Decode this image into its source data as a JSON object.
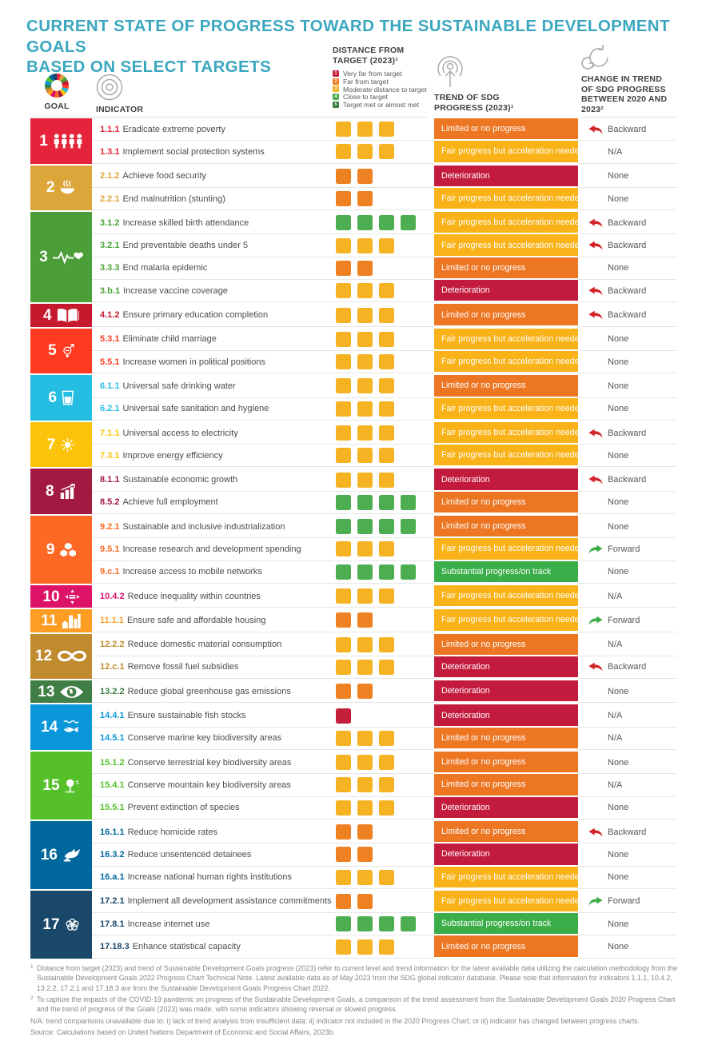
{
  "title": {
    "line1": "CURRENT STATE OF PROGRESS TOWARD THE SUSTAINABLE DEVELOPMENT GOALS",
    "line2": "BASED ON SELECT TARGETS"
  },
  "columns": {
    "goal": "GOAL",
    "indicator": "INDICATOR",
    "distance": "DISTANCE FROM TARGET (2023)¹",
    "trend": "TREND OF SDG PROGRESS (2023)¹",
    "change": "CHANGE IN TREND OF SDG PROGRESS BETWEEN 2020 AND 2023²"
  },
  "chart_data": {
    "type": "table",
    "distance_legend": [
      {
        "level": "1",
        "label": "Very far from target",
        "color": "#C5203B"
      },
      {
        "level": "2",
        "label": "Far from target",
        "color": "#EE7B23"
      },
      {
        "level": "3",
        "label": "Moderate distance to target",
        "color": "#F5B324"
      },
      {
        "level": "4",
        "label": "Close to target",
        "color": "#4CAE50"
      },
      {
        "level": "5",
        "label": "Target met or almost met",
        "color": "#367C38"
      }
    ],
    "square_colors": {
      "red": "#C5203B",
      "orange": "#EE8223",
      "yellow": "#F5B324",
      "green": "#4CAE50"
    },
    "trend_colors": {
      "limited": "#ED7623",
      "fair": "#F9B217",
      "deterioration": "#C31B3D",
      "substantial": "#3BAE49"
    },
    "trend_labels": {
      "limited": "Limited or no progress",
      "fair": "Fair progress but acceleration needed",
      "deterioration": "Deterioration",
      "substantial": "Substantial progress/on track"
    },
    "change_arrow_colors": {
      "Backward": "#D2232A",
      "Forward": "#3DAE49"
    },
    "goals": [
      {
        "number": "1",
        "color": "#E5243B",
        "icon": "people-icon",
        "indicators": [
          {
            "code": "1.1.1",
            "name": "Eradicate extreme poverty",
            "distance": {
              "level": "yellow",
              "count": 3
            },
            "trend": "limited",
            "change": "Backward"
          },
          {
            "code": "1.3.1",
            "name": "Implement social protection systems",
            "distance": {
              "level": "yellow",
              "count": 3
            },
            "trend": "fair",
            "change": "N/A"
          }
        ]
      },
      {
        "number": "2",
        "color": "#DDA63A",
        "icon": "food-icon",
        "indicators": [
          {
            "code": "2.1.2",
            "name": "Achieve food security",
            "distance": {
              "level": "orange",
              "count": 2
            },
            "trend": "deterioration",
            "change": "None"
          },
          {
            "code": "2.2.1",
            "name": "End malnutrition (stunting)",
            "distance": {
              "level": "orange",
              "count": 2
            },
            "trend": "fair",
            "change": "None"
          }
        ]
      },
      {
        "number": "3",
        "color": "#4C9F38",
        "icon": "health-icon",
        "indicators": [
          {
            "code": "3.1.2",
            "name": "Increase skilled birth attendance",
            "distance": {
              "level": "green",
              "count": 4
            },
            "trend": "fair",
            "change": "Backward"
          },
          {
            "code": "3.2.1",
            "name": "End preventable deaths under 5",
            "distance": {
              "level": "yellow",
              "count": 3
            },
            "trend": "fair",
            "change": "Backward"
          },
          {
            "code": "3.3.3",
            "name": "End malaria epidemic",
            "distance": {
              "level": "orange",
              "count": 2
            },
            "trend": "limited",
            "change": "None"
          },
          {
            "code": "3.b.1",
            "name": "Increase vaccine coverage",
            "distance": {
              "level": "yellow",
              "count": 3
            },
            "trend": "deterioration",
            "change": "Backward"
          }
        ]
      },
      {
        "number": "4",
        "color": "#C5192D",
        "icon": "education-icon",
        "indicators": [
          {
            "code": "4.1.2",
            "name": "Ensure primary education completion",
            "distance": {
              "level": "yellow",
              "count": 3
            },
            "trend": "limited",
            "change": "Backward"
          }
        ]
      },
      {
        "number": "5",
        "color": "#FF3A21",
        "icon": "gender-icon",
        "indicators": [
          {
            "code": "5.3.1",
            "name": "Eliminate child marriage",
            "distance": {
              "level": "yellow",
              "count": 3
            },
            "trend": "fair",
            "change": "None"
          },
          {
            "code": "5.5.1",
            "name": "Increase women in political positions",
            "distance": {
              "level": "yellow",
              "count": 3
            },
            "trend": "fair",
            "change": "None"
          }
        ]
      },
      {
        "number": "6",
        "color": "#26BDE2",
        "icon": "water-icon",
        "indicators": [
          {
            "code": "6.1.1",
            "name": "Universal safe drinking water",
            "distance": {
              "level": "yellow",
              "count": 3
            },
            "trend": "limited",
            "change": "None"
          },
          {
            "code": "6.2.1",
            "name": "Universal safe sanitation and hygiene",
            "distance": {
              "level": "yellow",
              "count": 3
            },
            "trend": "fair",
            "change": "None"
          }
        ]
      },
      {
        "number": "7",
        "color": "#FCC30B",
        "icon": "energy-icon",
        "indicators": [
          {
            "code": "7.1.1",
            "name": "Universal access to electricity",
            "distance": {
              "level": "yellow",
              "count": 3
            },
            "trend": "fair",
            "change": "Backward"
          },
          {
            "code": "7.3.1",
            "name": "Improve energy efficiency",
            "distance": {
              "level": "yellow",
              "count": 3
            },
            "trend": "fair",
            "change": "None"
          }
        ]
      },
      {
        "number": "8",
        "color": "#A21942",
        "icon": "economy-icon",
        "indicators": [
          {
            "code": "8.1.1",
            "name": "Sustainable economic growth",
            "distance": {
              "level": "yellow",
              "count": 3
            },
            "trend": "deterioration",
            "change": "Backward"
          },
          {
            "code": "8.5.2",
            "name": "Achieve full employment",
            "distance": {
              "level": "green",
              "count": 4
            },
            "trend": "limited",
            "change": "None"
          }
        ]
      },
      {
        "number": "9",
        "color": "#FD6925",
        "icon": "industry-icon",
        "indicators": [
          {
            "code": "9.2.1",
            "name": "Sustainable and inclusive industrialization",
            "distance": {
              "level": "green",
              "count": 4
            },
            "trend": "limited",
            "change": "None"
          },
          {
            "code": "9.5.1",
            "name": "Increase research and development spending",
            "distance": {
              "level": "yellow",
              "count": 3
            },
            "trend": "fair",
            "change": "Forward"
          },
          {
            "code": "9.c.1",
            "name": "Increase access to mobile networks",
            "distance": {
              "level": "green",
              "count": 4
            },
            "trend": "substantial",
            "change": "None"
          }
        ]
      },
      {
        "number": "10",
        "color": "#DD1367",
        "icon": "equality-icon",
        "indicators": [
          {
            "code": "10.4.2",
            "name": "Reduce inequality within countries",
            "distance": {
              "level": "yellow",
              "count": 3
            },
            "trend": "fair",
            "change": "N/A"
          }
        ]
      },
      {
        "number": "11",
        "color": "#FD9D24",
        "icon": "city-icon",
        "indicators": [
          {
            "code": "11.1.1",
            "name": "Ensure safe and affordable housing",
            "distance": {
              "level": "orange",
              "count": 2
            },
            "trend": "fair",
            "change": "Forward"
          }
        ]
      },
      {
        "number": "12",
        "color": "#BF8B2E",
        "icon": "consumption-icon",
        "indicators": [
          {
            "code": "12.2.2",
            "name": "Reduce domestic material consumption",
            "distance": {
              "level": "yellow",
              "count": 3
            },
            "trend": "limited",
            "change": "N/A"
          },
          {
            "code": "12.c.1",
            "name": "Remove fossil fuel subsidies",
            "distance": {
              "level": "yellow",
              "count": 3
            },
            "trend": "deterioration",
            "change": "Backward"
          }
        ]
      },
      {
        "number": "13",
        "color": "#3F7E44",
        "icon": "climate-icon",
        "indicators": [
          {
            "code": "13.2.2",
            "name": "Reduce global greenhouse gas emissions",
            "distance": {
              "level": "orange",
              "count": 2
            },
            "trend": "deterioration",
            "change": "None"
          }
        ]
      },
      {
        "number": "14",
        "color": "#0A97D9",
        "icon": "ocean-icon",
        "indicators": [
          {
            "code": "14.4.1",
            "name": "Ensure sustainable fish stocks",
            "distance": {
              "level": "red",
              "count": 1
            },
            "trend": "deterioration",
            "change": "N/A"
          },
          {
            "code": "14.5.1",
            "name": "Conserve marine key biodiversity areas",
            "distance": {
              "level": "yellow",
              "count": 3
            },
            "trend": "limited",
            "change": "N/A"
          }
        ]
      },
      {
        "number": "15",
        "color": "#56C02B",
        "icon": "land-icon",
        "indicators": [
          {
            "code": "15.1.2",
            "name": "Conserve terrestrial key biodiversity areas",
            "distance": {
              "level": "yellow",
              "count": 3
            },
            "trend": "limited",
            "change": "None"
          },
          {
            "code": "15.4.1",
            "name": "Conserve mountain key biodiversity areas",
            "distance": {
              "level": "yellow",
              "count": 3
            },
            "trend": "limited",
            "change": "N/A"
          },
          {
            "code": "15.5.1",
            "name": "Prevent extinction of species",
            "distance": {
              "level": "yellow",
              "count": 3
            },
            "trend": "deterioration",
            "change": "None"
          }
        ]
      },
      {
        "number": "16",
        "color": "#00689D",
        "icon": "peace-icon",
        "indicators": [
          {
            "code": "16.1.1",
            "name": "Reduce homicide rates",
            "distance": {
              "level": "orange",
              "count": 2
            },
            "trend": "limited",
            "change": "Backward"
          },
          {
            "code": "16.3.2",
            "name": "Reduce unsentenced detainees",
            "distance": {
              "level": "orange",
              "count": 2
            },
            "trend": "deterioration",
            "change": "None"
          },
          {
            "code": "16.a.1",
            "name": "Increase national human rights institutions",
            "distance": {
              "level": "yellow",
              "count": 3
            },
            "trend": "fair",
            "change": "None"
          }
        ]
      },
      {
        "number": "17",
        "color": "#19486A",
        "icon": "partnership-icon",
        "indicators": [
          {
            "code": "17.2.1",
            "name": "Implement all development assistance commitments",
            "distance": {
              "level": "orange",
              "count": 2
            },
            "trend": "fair",
            "change": "Forward"
          },
          {
            "code": "17.8.1",
            "name": "Increase internet use",
            "distance": {
              "level": "green",
              "count": 4
            },
            "trend": "substantial",
            "change": "None"
          },
          {
            "code": "17.18.3",
            "name": "Enhance statistical capacity",
            "distance": {
              "level": "yellow",
              "count": 3
            },
            "trend": "limited",
            "change": "None"
          }
        ]
      }
    ]
  },
  "footnotes": [
    {
      "marker": "1",
      "text": "Distance from target (2023) and trend of Sustainable Development Goals progress (2023) refer to current level and trend information for the latest available data utilizing the calculation methodology from the Sustainable Development Goals 2022 Progress Chart Technical Note. Latest available data as of May 2023 from the SDG global indicator database. Please note that information for indicators 1.1.1, 10.4.2, 13.2.2, 17.2.1 and 17.18.3 are from the Sustainable Development Goals Progress Chart 2022."
    },
    {
      "marker": "2",
      "text": "To capture the impacts of the COVID-19 pandemic on progress of the Sustainable Development Goals, a comparison of the trend assessment from the Sustainable Development Goals 2020 Progress Chart and the trend of progress of the Goals (2023) was made, with some indicators showing reversal or slowed progress."
    }
  ],
  "na_note": "N/A: trend comparisons unavailable due to: i) lack of trend analysis from insufficient data; ii) indicator not included in the 2020 Progress Chart; or iii) indicator has changed between progress charts.",
  "source": "Source: Calculations based on United Nations Department of Economic and Social Affairs, 2023b."
}
